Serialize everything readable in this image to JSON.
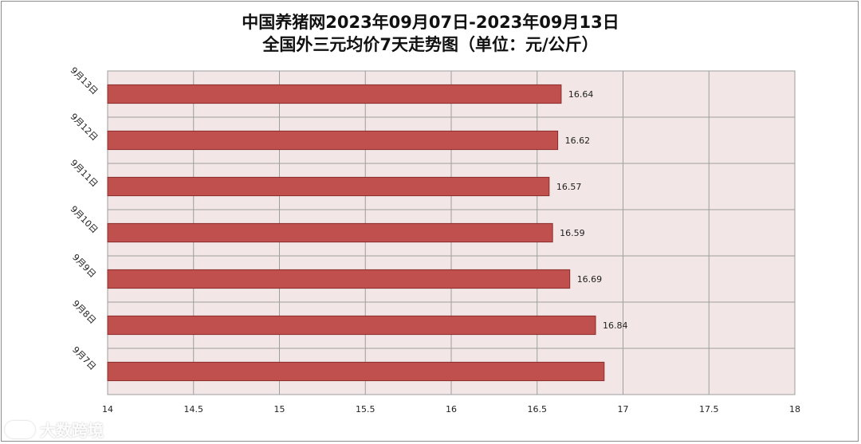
{
  "chart_data": {
    "type": "bar",
    "orientation": "horizontal",
    "title_line1": "中国养猪网2023年09月07日-2023年09月13日",
    "title_line2": "全国外三元均价7天走势图（单位：元/公斤）",
    "categories": [
      "9月13日",
      "9月12日",
      "9月11日",
      "9月10日",
      "9月9日",
      "9月8日",
      "9月7日"
    ],
    "values": [
      16.64,
      16.62,
      16.57,
      16.59,
      16.69,
      16.84,
      16.89
    ],
    "data_labels": [
      "16.64",
      "16.62",
      "16.57",
      "16.59",
      "16.69",
      "16.84",
      ""
    ],
    "x_ticks": [
      "14",
      "14.5",
      "15",
      "15.5",
      "16",
      "16.5",
      "17",
      "17.5",
      "18"
    ],
    "xlim": [
      14,
      18
    ],
    "grid": true,
    "colors": {
      "bar_fill": "#c0504d",
      "bar_stroke": "#8b2d2b",
      "plot_bg": "#f2e6e6",
      "grid": "#9e9e9e"
    }
  },
  "watermark": {
    "text": "大数跨境"
  }
}
